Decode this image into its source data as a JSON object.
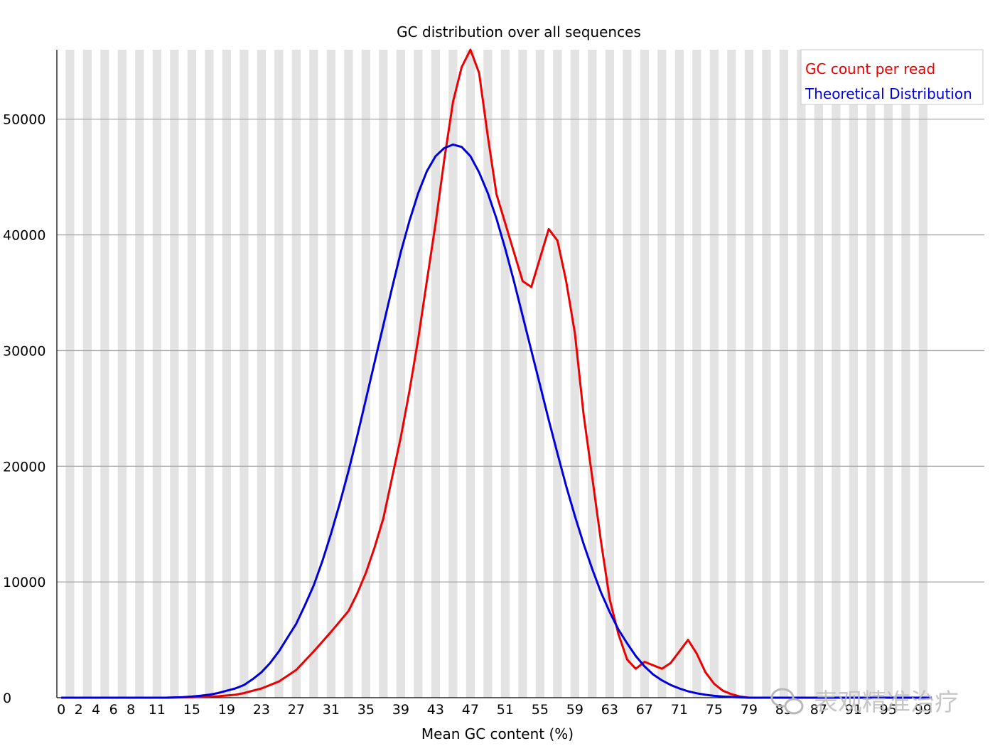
{
  "watermark": {
    "text": "表观精准治疗",
    "icon": "wechat-bubble-icon"
  },
  "chart_data": {
    "type": "line",
    "title": "GC distribution over all sequences",
    "xlabel": "Mean GC content (%)",
    "ylabel": "",
    "xlim": [
      0,
      100
    ],
    "ylim": [
      0,
      56000
    ],
    "x_tick_labels": [
      "0",
      "2",
      "4",
      "6",
      "8",
      "11",
      "15",
      "19",
      "23",
      "27",
      "31",
      "35",
      "39",
      "43",
      "47",
      "51",
      "55",
      "59",
      "63",
      "67",
      "71",
      "75",
      "79",
      "83",
      "87",
      "91",
      "95",
      "99"
    ],
    "y_ticks": [
      0,
      10000,
      20000,
      30000,
      40000,
      50000
    ],
    "grid": true,
    "legend_position": "top-right",
    "series": [
      {
        "name": "GC count per read",
        "color": "#ee0000",
        "points": [
          [
            0,
            0
          ],
          [
            12,
            0
          ],
          [
            15,
            50
          ],
          [
            18,
            120
          ],
          [
            20,
            250
          ],
          [
            21,
            400
          ],
          [
            22,
            600
          ],
          [
            23,
            800
          ],
          [
            25,
            1400
          ],
          [
            27,
            2400
          ],
          [
            29,
            4000
          ],
          [
            31,
            5700
          ],
          [
            33,
            7500
          ],
          [
            34,
            9000
          ],
          [
            35,
            10800
          ],
          [
            36,
            13000
          ],
          [
            37,
            15500
          ],
          [
            38,
            19000
          ],
          [
            39,
            22500
          ],
          [
            40,
            26500
          ],
          [
            41,
            31000
          ],
          [
            42,
            36000
          ],
          [
            43,
            41000
          ],
          [
            44,
            46500
          ],
          [
            45,
            51500
          ],
          [
            46,
            54500
          ],
          [
            47,
            56000
          ],
          [
            48,
            54000
          ],
          [
            49,
            48500
          ],
          [
            50,
            43500
          ],
          [
            51,
            41000
          ],
          [
            52,
            38500
          ],
          [
            53,
            36000
          ],
          [
            54,
            35500
          ],
          [
            56,
            40500
          ],
          [
            57,
            39500
          ],
          [
            58,
            36000
          ],
          [
            59,
            31500
          ],
          [
            60,
            24500
          ],
          [
            61,
            19000
          ],
          [
            62,
            13500
          ],
          [
            63,
            8500
          ],
          [
            64,
            5500
          ],
          [
            65,
            3300
          ],
          [
            66,
            2500
          ],
          [
            67,
            3100
          ],
          [
            68,
            2800
          ],
          [
            69,
            2500
          ],
          [
            70,
            3000
          ],
          [
            71,
            4000
          ],
          [
            72,
            5000
          ],
          [
            73,
            3800
          ],
          [
            74,
            2200
          ],
          [
            75,
            1200
          ],
          [
            76,
            600
          ],
          [
            77,
            300
          ],
          [
            78,
            100
          ],
          [
            79,
            0
          ],
          [
            100,
            0
          ]
        ]
      },
      {
        "name": "Theoretical Distribution",
        "color": "#0000dd",
        "points": [
          [
            0,
            0
          ],
          [
            12,
            0
          ],
          [
            14,
            40
          ],
          [
            15,
            100
          ],
          [
            16,
            170
          ],
          [
            17,
            260
          ],
          [
            18,
            400
          ],
          [
            19,
            600
          ],
          [
            20,
            800
          ],
          [
            21,
            1100
          ],
          [
            22,
            1600
          ],
          [
            23,
            2200
          ],
          [
            24,
            3000
          ],
          [
            25,
            4000
          ],
          [
            26,
            5200
          ],
          [
            27,
            6400
          ],
          [
            28,
            8000
          ],
          [
            29,
            9700
          ],
          [
            30,
            11800
          ],
          [
            31,
            14200
          ],
          [
            32,
            16800
          ],
          [
            33,
            19600
          ],
          [
            34,
            22600
          ],
          [
            35,
            25800
          ],
          [
            36,
            29000
          ],
          [
            37,
            32200
          ],
          [
            38,
            35400
          ],
          [
            39,
            38500
          ],
          [
            40,
            41200
          ],
          [
            41,
            43600
          ],
          [
            42,
            45500
          ],
          [
            43,
            46800
          ],
          [
            44,
            47500
          ],
          [
            45,
            47800
          ],
          [
            46,
            47600
          ],
          [
            47,
            46800
          ],
          [
            48,
            45400
          ],
          [
            49,
            43600
          ],
          [
            50,
            41400
          ],
          [
            51,
            38800
          ],
          [
            52,
            36000
          ],
          [
            53,
            33000
          ],
          [
            54,
            30000
          ],
          [
            55,
            27000
          ],
          [
            56,
            24000
          ],
          [
            57,
            21100
          ],
          [
            58,
            18300
          ],
          [
            59,
            15700
          ],
          [
            60,
            13300
          ],
          [
            61,
            11100
          ],
          [
            62,
            9100
          ],
          [
            63,
            7400
          ],
          [
            64,
            5900
          ],
          [
            65,
            4700
          ],
          [
            66,
            3600
          ],
          [
            67,
            2700
          ],
          [
            68,
            2000
          ],
          [
            69,
            1500
          ],
          [
            70,
            1100
          ],
          [
            71,
            800
          ],
          [
            72,
            550
          ],
          [
            73,
            380
          ],
          [
            74,
            250
          ],
          [
            75,
            160
          ],
          [
            76,
            100
          ],
          [
            77,
            60
          ],
          [
            78,
            30
          ],
          [
            79,
            0
          ],
          [
            100,
            0
          ]
        ]
      }
    ]
  }
}
